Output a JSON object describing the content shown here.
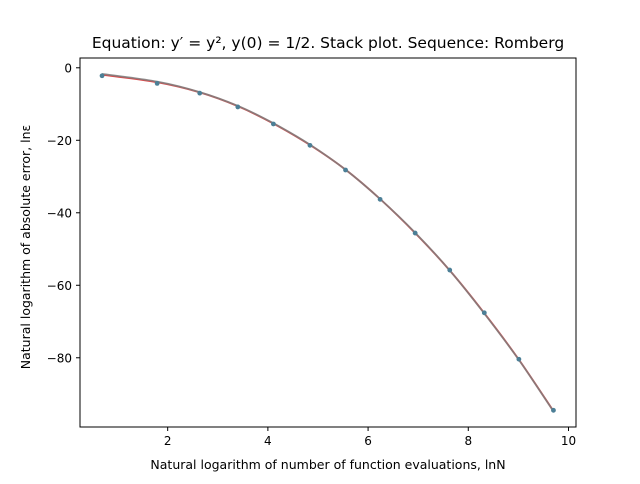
{
  "chart_data": {
    "type": "line",
    "title": "Equation: y′ = y², y(0) = 1/2. Stack plot. Sequence: Romberg",
    "xlabel": "Natural logarithm of number of function evaluations, lnN",
    "ylabel": "Natural logarithm of absolute error, lnε",
    "xlim": [
      0.25,
      10.15
    ],
    "ylim": [
      -99.1,
      2.7
    ],
    "xticks": [
      2,
      4,
      6,
      8,
      10
    ],
    "yticks": [
      0,
      -20,
      -40,
      -60,
      -80
    ],
    "grid": false,
    "legend": "none",
    "series": [
      {
        "kind": "points",
        "color": "#4c7f96",
        "x": [
          0.69,
          1.79,
          2.64,
          3.4,
          4.11,
          4.84,
          5.55,
          6.24,
          6.94,
          7.63,
          8.32,
          9.01,
          9.7
        ],
        "y": [
          -2.2,
          -4.3,
          -7.0,
          -10.8,
          -15.5,
          -21.4,
          -28.2,
          -36.3,
          -45.6,
          -55.8,
          -67.6,
          -80.4,
          -94.5
        ]
      },
      {
        "kind": "fit",
        "color": "#d62728",
        "x": [
          0.69,
          1.79,
          2.64,
          3.4,
          4.11,
          4.84,
          5.55,
          6.24,
          6.94,
          7.63,
          8.32,
          9.01,
          9.7
        ],
        "y": [
          -1.9,
          -4.0,
          -6.8,
          -10.6,
          -15.4,
          -21.3,
          -28.1,
          -36.2,
          -45.6,
          -55.9,
          -67.7,
          -80.5,
          -94.7
        ]
      },
      {
        "kind": "fit",
        "color": "#7f7f7f",
        "x": [
          0.69,
          1.79,
          2.64,
          3.4,
          4.11,
          4.84,
          5.55,
          6.24,
          6.94,
          7.63,
          8.32,
          9.01,
          9.7
        ],
        "y": [
          -1.7,
          -3.8,
          -6.7,
          -10.5,
          -15.3,
          -21.2,
          -28.1,
          -36.2,
          -45.5,
          -55.9,
          -67.8,
          -80.6,
          -94.8
        ]
      }
    ]
  }
}
